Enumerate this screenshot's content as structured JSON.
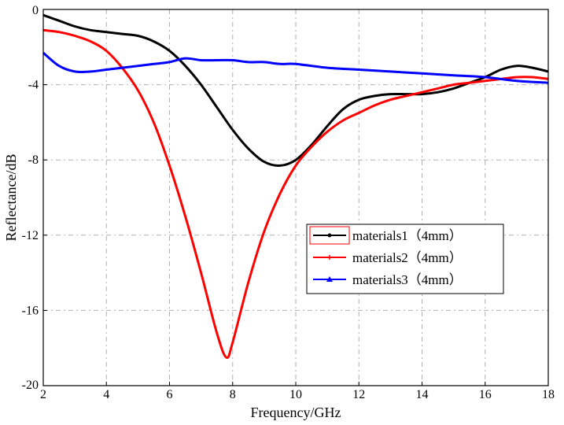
{
  "chart_data": {
    "type": "line",
    "xlabel": "Frequency/GHz",
    "ylabel": "Reflectance/dB",
    "xlim": [
      2,
      18
    ],
    "ylim": [
      -20,
      0
    ],
    "xticks": [
      2,
      4,
      6,
      8,
      10,
      12,
      14,
      16,
      18
    ],
    "yticks": [
      0,
      -4,
      -8,
      -12,
      -16,
      -20
    ],
    "xtick_labels": [
      "2",
      "4",
      "6",
      "8",
      "10",
      "12",
      "14",
      "16",
      "18"
    ],
    "ytick_labels": [
      "0",
      "-4",
      "-8",
      "-12",
      "-16",
      "-20"
    ],
    "grid": true,
    "legend_position": "center-right",
    "series": [
      {
        "name": "materials1（4mm）",
        "color": "#000000",
        "marker": "dot",
        "x": [
          2,
          2.5,
          3,
          3.5,
          4,
          4.5,
          5,
          5.5,
          6,
          6.5,
          7,
          7.5,
          8,
          8.5,
          9,
          9.5,
          10,
          10.5,
          11,
          11.5,
          12,
          12.5,
          13,
          13.5,
          14,
          14.5,
          15,
          15.5,
          16,
          16.5,
          17,
          17.5,
          18
        ],
        "y": [
          -0.3,
          -0.6,
          -0.9,
          -1.1,
          -1.2,
          -1.3,
          -1.4,
          -1.7,
          -2.2,
          -3.0,
          -4.0,
          -5.2,
          -6.4,
          -7.4,
          -8.1,
          -8.3,
          -8.0,
          -7.2,
          -6.2,
          -5.3,
          -4.8,
          -4.6,
          -4.5,
          -4.5,
          -4.5,
          -4.4,
          -4.2,
          -3.9,
          -3.6,
          -3.2,
          -3.0,
          -3.1,
          -3.3
        ]
      },
      {
        "name": "materials2（4mm）",
        "color": "#ff0000",
        "marker": "plus",
        "x": [
          2,
          2.5,
          3,
          3.5,
          4,
          4.5,
          5,
          5.5,
          6,
          6.5,
          7,
          7.5,
          7.8,
          8,
          8.5,
          9,
          9.5,
          10,
          10.5,
          11,
          11.5,
          12,
          12.5,
          13,
          13.5,
          14,
          14.5,
          15,
          15.5,
          16,
          16.5,
          17,
          17.5,
          18
        ],
        "y": [
          -1.1,
          -1.2,
          -1.4,
          -1.7,
          -2.2,
          -3.1,
          -4.3,
          -6.0,
          -8.3,
          -11.0,
          -14.0,
          -17.2,
          -18.5,
          -17.7,
          -14.5,
          -11.8,
          -9.8,
          -8.3,
          -7.3,
          -6.5,
          -5.9,
          -5.5,
          -5.1,
          -4.8,
          -4.6,
          -4.4,
          -4.2,
          -4.0,
          -3.9,
          -3.8,
          -3.7,
          -3.6,
          -3.6,
          -3.7
        ]
      },
      {
        "name": "materials3（4mm）",
        "color": "#0000ff",
        "marker": "triangle",
        "x": [
          2,
          2.5,
          3,
          3.5,
          4,
          4.5,
          5,
          5.5,
          6,
          6.5,
          7,
          7.5,
          8,
          8.5,
          9,
          9.5,
          10,
          11,
          12,
          13,
          14,
          15,
          16,
          17,
          18
        ],
        "y": [
          -2.3,
          -3.0,
          -3.3,
          -3.3,
          -3.2,
          -3.1,
          -3.0,
          -2.9,
          -2.8,
          -2.6,
          -2.7,
          -2.7,
          -2.7,
          -2.8,
          -2.8,
          -2.9,
          -2.9,
          -3.1,
          -3.2,
          -3.3,
          -3.4,
          -3.5,
          -3.6,
          -3.8,
          -3.9
        ]
      }
    ]
  }
}
